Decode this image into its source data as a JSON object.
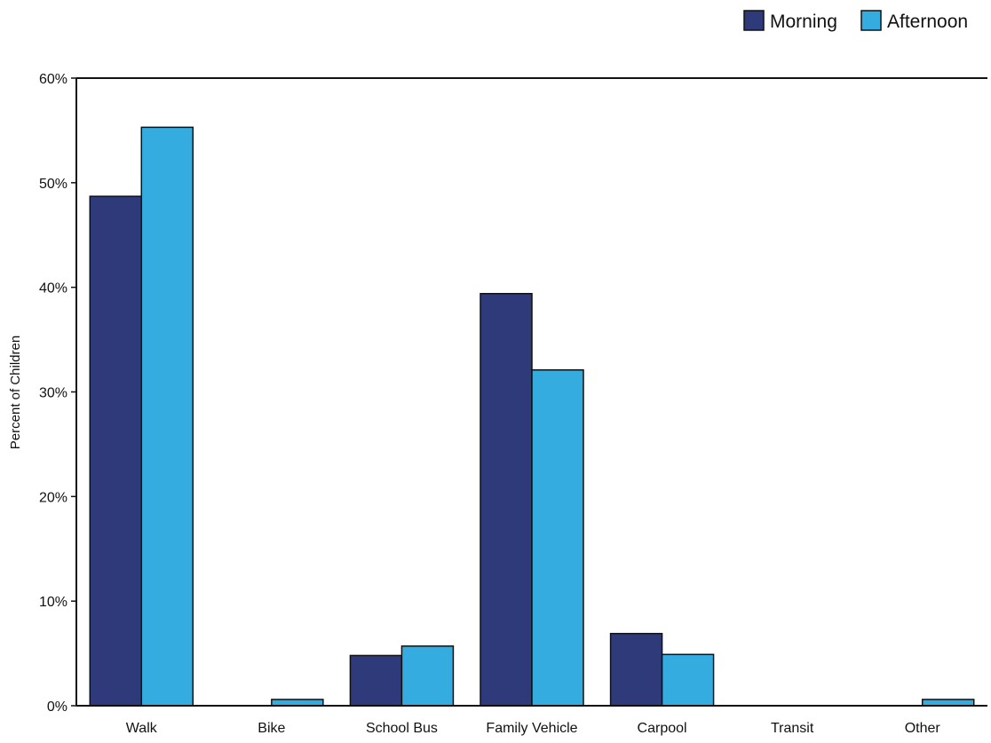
{
  "chart_data": {
    "type": "bar",
    "title": "",
    "xlabel": "",
    "ylabel": "Percent of Children",
    "categories": [
      "Walk",
      "Bike",
      "School Bus",
      "Family Vehicle",
      "Carpool",
      "Transit",
      "Other"
    ],
    "series": [
      {
        "name": "Morning",
        "color": "#2e3a7a",
        "values": [
          48.7,
          0,
          4.8,
          39.4,
          6.9,
          0,
          0
        ]
      },
      {
        "name": "Afternoon",
        "color": "#35ace0",
        "values": [
          55.3,
          0.6,
          5.7,
          32.1,
          4.9,
          0,
          0.6
        ]
      }
    ],
    "ylim": [
      0,
      60
    ],
    "yticks": [
      0,
      10,
      20,
      30,
      40,
      50,
      60
    ],
    "ytick_labels": [
      "0%",
      "10%",
      "20%",
      "30%",
      "40%",
      "50%",
      "60%"
    ],
    "grid": false,
    "legend_position": "top-right"
  }
}
